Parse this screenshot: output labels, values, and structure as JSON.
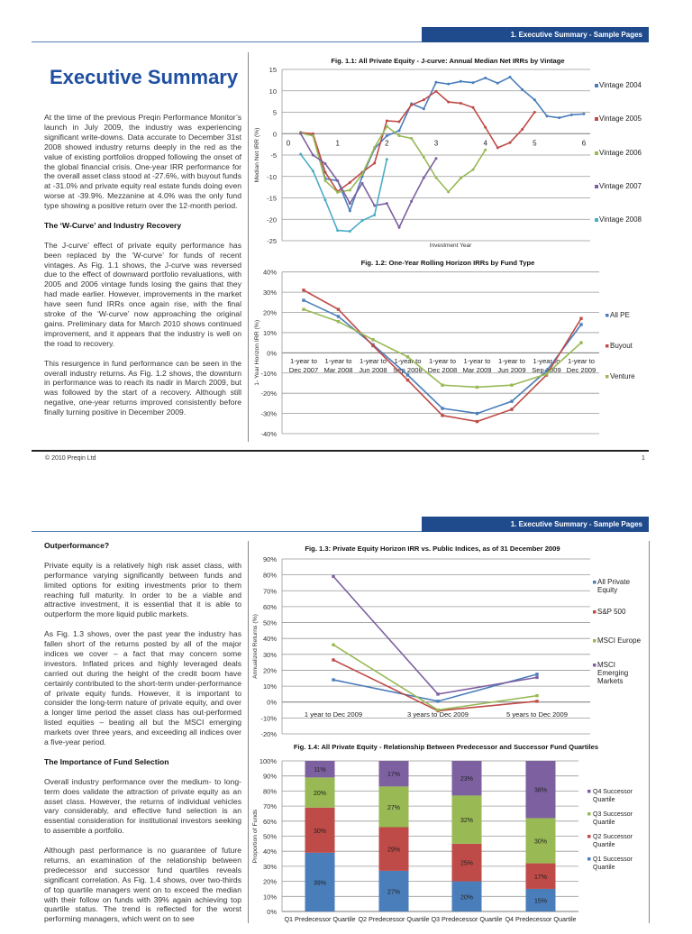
{
  "page1": {
    "header": "1. Executive Summary - Sample Pages",
    "title": "Executive Summary",
    "paragraphs": [
      "At the time of the previous Preqin Performance Monitor’s launch in July 2009, the industry was experiencing significant write-downs. Data accurate to December 31st 2008 showed industry returns deeply in the red as the value of existing portfolios dropped following the onset of the global financial crisis. One-year IRR performance for the overall asset class stood at -27.6%, with buyout funds at -31.0% and private equity real estate funds doing even worse at -39.9%. Mezzanine at 4.0% was the only fund type showing a positive return over the 12-month period.",
      "The J-curve’ effect of private equity performance has been replaced by the ‘W-curve’ for funds of recent vintages. As Fig. 1.1 shows, the J-curve was reversed due to the effect of downward portfolio revaluations, with 2005 and 2006 vintage funds losing the gains that they had made earlier. However, improvements in the market have seen fund IRRs once again rise, with the final stroke of the ‘W-curve’ now approaching the original gains. Preliminary data for March 2010 shows continued improvement, and it appears that the industry is well on the road to recovery.",
      "This resurgence in fund performance can be seen in the overall industry returns. As Fig. 1.2 shows, the downturn in performance was to reach its nadir in March 2009, but was followed by the start of a recovery. Although still negative, one-year returns improved consistently before finally turning positive in December 2009."
    ],
    "heading_wcurve": "The ‘W-Curve’ and Industry Recovery",
    "footer_left": "© 2010 Preqin Ltd",
    "footer_right": "1"
  },
  "page2": {
    "header": "1. Executive Summary - Sample Pages",
    "heading_outperformance": "Outperformance?",
    "outperformance_paragraphs": [
      "Private equity is a relatively high risk asset class, with performance varying significantly between funds and limited options for exiting investments prior to them reaching full maturity. In order to be a viable and attractive investment, it is essential that it is able to outperform the more liquid public markets.",
      "As Fig. 1.3 shows, over the past year the industry has fallen short of the returns posted by all of the major indices we cover – a fact that may concern some investors. Inflated prices and highly leveraged deals carried out during the height of the credit boom have certainly contributed to the short-term under-performance of private equity funds. However, it is important to consider the long-term nature of private equity, and over a longer time period the asset class has out-performed listed equities – beating all but the MSCI emerging markets over three years, and exceeding all indices over a five-year period."
    ],
    "heading_selection": "The Importance of Fund Selection",
    "selection_paragraphs": [
      "Overall industry performance over the medium- to long-term does validate the attraction of private equity as an asset class. However, the returns of individual vehicles vary considerably, and effective fund selection is an essential consideration for institutional investors seeking to assemble a portfolio.",
      "Although past performance is no guarantee of future returns, an examination of the relationship between predecessor and successor fund quartiles reveals significant correlation. As Fig. 1.4 shows, over two-thirds of top quartile managers went on to exceed the median with their follow on funds with 39% again achieving top quartile status. The trend is reflected for the worst performing managers, which went on to see"
    ]
  },
  "colors": {
    "header_bar": "#1f4a8c",
    "title": "#1f4fa0"
  },
  "chart_data": [
    {
      "type": "line",
      "title": "Fig. 1.1: All Private Equity - J-curve: Annual Median Net IRRs by Vintage",
      "xlabel": "Investment Year",
      "ylabel": "Median Net IRR (%)",
      "xlim": [
        0,
        6
      ],
      "xticks": [
        "0",
        "1",
        "2",
        "3",
        "4",
        "5",
        "6"
      ],
      "ylim": [
        -25,
        15
      ],
      "yticks": [
        "15",
        "10",
        "5",
        "0",
        "-5",
        "-10",
        "-15",
        "-20",
        "-25"
      ],
      "grid": true,
      "legend": "right",
      "series": [
        {
          "name": "Vintage 2004",
          "color": "#4a7ebb",
          "x": [
            0.25,
            0.5,
            0.75,
            1,
            1.25,
            1.5,
            1.75,
            2,
            2.25,
            2.5,
            2.75,
            3,
            3.25,
            3.5,
            3.75,
            4,
            4.25,
            4.5,
            4.75,
            5,
            5.25,
            5.5,
            5.75,
            6
          ],
          "y": [
            0.3,
            -0.3,
            -10.5,
            -11,
            -18,
            -10,
            -3.5,
            -0.5,
            0.7,
            7,
            5.8,
            12,
            11.6,
            12.2,
            11.9,
            13,
            11.8,
            13.2,
            10.3,
            7.9,
            4.1,
            3.7,
            4.4,
            4.6
          ]
        },
        {
          "name": "Vintage 2005",
          "color": "#be4b48",
          "x": [
            0.25,
            0.5,
            0.75,
            1,
            1.25,
            1.5,
            1.75,
            2,
            2.25,
            2.5,
            2.75,
            3,
            3.25,
            3.5,
            3.75,
            4,
            4.25,
            4.5,
            4.75,
            5
          ],
          "y": [
            0.2,
            0,
            -9,
            -13.5,
            -11.4,
            -9,
            -6.9,
            3,
            2.8,
            6.7,
            7.9,
            9.9,
            7.4,
            7.1,
            6.1,
            1.5,
            -3.3,
            -2.1,
            1,
            5
          ]
        },
        {
          "name": "Vintage 2006",
          "color": "#98b954",
          "x": [
            0.25,
            0.5,
            0.75,
            1,
            1.25,
            1.5,
            1.75,
            2,
            2.25,
            2.5,
            2.75,
            3,
            3.25,
            3.5,
            3.75,
            4
          ],
          "y": [
            0.1,
            -0.5,
            -11,
            -13.7,
            -13.2,
            -9.5,
            -3.2,
            1.7,
            -0.5,
            -1.1,
            -5.5,
            -10.3,
            -13.6,
            -10.4,
            -8.4,
            -3.8
          ]
        },
        {
          "name": "Vintage 2007",
          "color": "#7d60a0",
          "x": [
            0.25,
            0.5,
            0.75,
            1,
            1.25,
            1.5,
            1.75,
            2,
            2.25,
            2.5,
            2.75,
            3
          ],
          "y": [
            0,
            -5,
            -7,
            -11,
            -16.3,
            -11.6,
            -16.8,
            -16.3,
            -21.9,
            -15.8,
            -10.3,
            -5.8
          ]
        },
        {
          "name": "Vintage 2008",
          "color": "#4bacc6",
          "x": [
            0.25,
            0.5,
            0.75,
            1,
            1.25,
            1.5,
            1.75,
            2
          ],
          "y": [
            -4.8,
            -8.7,
            -15.5,
            -22.6,
            -22.8,
            -20.3,
            -19,
            -6
          ]
        }
      ]
    },
    {
      "type": "line",
      "title": "Fig. 1.2: One-Year Rolling Horizon IRRs by Fund Type",
      "ylabel": "1- Year Horizon IRR (%)",
      "categories": [
        [
          "1-year to",
          "Dec 2007"
        ],
        [
          "1-year to",
          "Mar 2008"
        ],
        [
          "1-year to",
          "Jun 2008"
        ],
        [
          "1-year to",
          "Sep 2008"
        ],
        [
          "1-year to",
          "Dec 2008"
        ],
        [
          "1-year to",
          "Mar 2009"
        ],
        [
          "1-year to",
          "Jun 2009"
        ],
        [
          "1-year to",
          "Sep 2009"
        ],
        [
          "1-year to",
          "Dec 2009"
        ]
      ],
      "ylim": [
        -40,
        40
      ],
      "yticks": [
        "40%",
        "30%",
        "20%",
        "10%",
        "0%",
        "-10%",
        "-20%",
        "-30%",
        "-40%"
      ],
      "grid": true,
      "legend": "right",
      "series": [
        {
          "name": "All PE",
          "color": "#4a7ebb",
          "values": [
            26,
            18,
            4,
            -11,
            -27.5,
            -30,
            -24,
            -9,
            14
          ]
        },
        {
          "name": "Buyout",
          "color": "#be4b48",
          "values": [
            31,
            21.5,
            3.5,
            -13.5,
            -31,
            -34,
            -28,
            -11,
            17
          ]
        },
        {
          "name": "Venture",
          "color": "#98b954",
          "values": [
            21.5,
            15.5,
            6.5,
            -2,
            -16,
            -17,
            -16,
            -10.5,
            5
          ]
        }
      ]
    },
    {
      "type": "line",
      "title": "Fig. 1.3: Private Equity Horizon IRR vs. Public Indices, as of 31 December 2009",
      "ylabel": "Annualized Returns (%)",
      "categories": [
        [
          "1 year to Dec 2009"
        ],
        [
          "3 years to Dec 2009"
        ],
        [
          "5 years to Dec 2009"
        ]
      ],
      "ylim": [
        -20,
        90
      ],
      "yticks": [
        "90%",
        "80%",
        "70%",
        "60%",
        "50%",
        "40%",
        "30%",
        "20%",
        "10%",
        "0%",
        "-10%",
        "-20%"
      ],
      "grid": true,
      "legend": "right",
      "series": [
        {
          "name": "All Private Equity",
          "legend_lines": [
            "All Private",
            "Equity"
          ],
          "color": "#4a7ebb",
          "values": [
            14,
            0.5,
            17.5
          ]
        },
        {
          "name": "S&P 500",
          "legend_lines": [
            "S&P 500"
          ],
          "color": "#be4b48",
          "values": [
            26.5,
            -5.5,
            0.5
          ]
        },
        {
          "name": "MSCI Europe",
          "legend_lines": [
            "MSCI Europe"
          ],
          "color": "#98b954",
          "values": [
            36,
            -5,
            4
          ]
        },
        {
          "name": "MSCI Emerging Markets",
          "legend_lines": [
            "MSCI",
            "Emerging",
            "Markets"
          ],
          "color": "#7d60a0",
          "values": [
            79,
            5,
            15.5
          ]
        }
      ]
    },
    {
      "type": "bar",
      "stacked": true,
      "title": "Fig. 1.4: All Private Equity - Relationship Between Predecessor and Successor Fund Quartiles",
      "ylabel": "Proportion of Funds",
      "categories": [
        "Q1 Predecessor Quartile",
        "Q2 Predecessor Quartile",
        "Q3 Predecessor Quartile",
        "Q4 Predecessor Quartile"
      ],
      "ylim": [
        0,
        100
      ],
      "yticks": [
        "100%",
        "90%",
        "80%",
        "70%",
        "60%",
        "50%",
        "40%",
        "30%",
        "20%",
        "10%",
        "0%"
      ],
      "grid": true,
      "legend": "right",
      "series": [
        {
          "name": "Q1 Successor Quartile",
          "legend_lines": [
            "Q1 Successor",
            "Quartile"
          ],
          "color": "#4a7ebb",
          "values": [
            39,
            27,
            20,
            15
          ],
          "labels": [
            "39%",
            "27%",
            "20%",
            "15%"
          ]
        },
        {
          "name": "Q2 Successor Quartile",
          "legend_lines": [
            "Q2 Successor",
            "Quartile"
          ],
          "color": "#be4b48",
          "values": [
            30,
            29,
            25,
            17
          ],
          "labels": [
            "30%",
            "29%",
            "25%",
            "17%"
          ]
        },
        {
          "name": "Q3 Successor Quartile",
          "legend_lines": [
            "Q3 Successor",
            "Quartile"
          ],
          "color": "#98b954",
          "values": [
            20,
            27,
            32,
            30
          ],
          "labels": [
            "20%",
            "27%",
            "32%",
            "30%"
          ]
        },
        {
          "name": "Q4 Successor Quartile",
          "legend_lines": [
            "Q4 Successor",
            "Quartile"
          ],
          "color": "#7d60a0",
          "values": [
            11,
            17,
            23,
            38
          ],
          "labels": [
            "11%",
            "17%",
            "23%",
            "38%"
          ]
        }
      ]
    }
  ]
}
